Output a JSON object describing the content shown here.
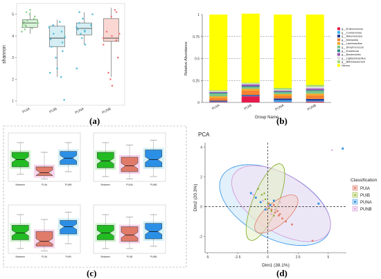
{
  "panels": {
    "a": {
      "label": "(a)",
      "chart_data": {
        "type": "boxplot",
        "ylabel": "shannon",
        "ylim": [
          0.8,
          5.5
        ],
        "yticks": [
          "1",
          "2",
          "3",
          "4",
          "5"
        ],
        "categories": [
          "PUIA",
          "PUIB",
          "PUNA",
          "PUNB"
        ],
        "colors": [
          "#8fd18f",
          "#5bc0d8",
          "#5bc0d8",
          "#f07c7c"
        ],
        "fills": [
          "#d8f5d8",
          "#d4eef4",
          "#d4eef4",
          "#fbd7d3"
        ],
        "boxes": [
          {
            "min": 4.1,
            "q1": 4.4,
            "median": 4.6,
            "q3": 4.75,
            "max": 5.1
          },
          {
            "min": 2.1,
            "q1": 3.5,
            "median": 3.9,
            "q3": 4.45,
            "max": 4.75
          },
          {
            "min": 3.6,
            "q1": 4.05,
            "median": 4.35,
            "q3": 4.6,
            "max": 5.1
          },
          {
            "min": 2.1,
            "q1": 3.75,
            "median": 3.9,
            "q3": 4.8,
            "max": 5.3
          }
        ],
        "points": [
          [
            4.2,
            4.3,
            4.4,
            4.45,
            4.5,
            4.55,
            4.6,
            4.65,
            4.7,
            4.75,
            4.8,
            4.9,
            5.0,
            5.1,
            5.2,
            4.35,
            4.6
          ],
          [
            1.05,
            2.1,
            2.3,
            3.0,
            3.3,
            3.5,
            3.7,
            3.85,
            3.95,
            4.1,
            4.2,
            4.4,
            4.5,
            4.65,
            2.5
          ],
          [
            2.5,
            3.6,
            3.9,
            4.1,
            4.2,
            4.3,
            4.4,
            4.5,
            4.6,
            4.8,
            5.0,
            5.1,
            4.25
          ],
          [
            1.7,
            2.0,
            2.3,
            3.0,
            3.6,
            3.8,
            3.9,
            4.0,
            4.2,
            4.9,
            5.1,
            5.2,
            4.1
          ]
        ]
      }
    },
    "b": {
      "label": "(b)",
      "chart_data": {
        "type": "bar",
        "stacked": true,
        "xlabel": "Group Name",
        "ylabel": "Relative Abundance",
        "ylim": [
          0,
          1
        ],
        "yticks": [
          "0",
          "0.25",
          "0.5",
          "0.75",
          "1"
        ],
        "categories": [
          "PUIA",
          "PUIB",
          "PUNA",
          "PUNB"
        ],
        "series": [
          {
            "name": "g__Enterococcus",
            "color": "#e6194b",
            "values": [
              0.005,
              0.07,
              0.005,
              0.01
            ]
          },
          {
            "name": "g__Comamonas",
            "color": "#3cb0f0",
            "values": [
              0.005,
              0.005,
              0.02,
              0.01
            ]
          },
          {
            "name": "g__Akkermansia",
            "color": "#1f3a93",
            "values": [
              0.01,
              0.01,
              0.02,
              0.02
            ]
          },
          {
            "name": "g__Klebsiella",
            "color": "#f58231",
            "values": [
              0.03,
              0.05,
              0.03,
              0.04
            ]
          },
          {
            "name": "g__Lactobacillus",
            "color": "#f5a623",
            "values": [
              0.02,
              0.02,
              0.02,
              0.02
            ]
          },
          {
            "name": "g__Streptococcus",
            "color": "#7cc68a",
            "values": [
              0.03,
              0.02,
              0.02,
              0.03
            ]
          },
          {
            "name": "g__Roseburia",
            "color": "#2e8b8b",
            "values": [
              0.01,
              0.01,
              0.01,
              0.01
            ]
          },
          {
            "name": "g__Bacteroides",
            "color": "#9b59b6",
            "values": [
              0.01,
              0.02,
              0.01,
              0.02
            ]
          },
          {
            "name": "g__Ligilactobacillus",
            "color": "#dddddd",
            "values": [
              0.01,
              0.01,
              0.01,
              0.02
            ]
          },
          {
            "name": "g__Bifidobacterium",
            "color": "#a3d977",
            "values": [
              0.01,
              0.01,
              0.02,
              0.02
            ]
          },
          {
            "name": "Others",
            "color": "#ffff00",
            "values": [
              0.86,
              0.785,
              0.835,
              0.8
            ]
          }
        ],
        "reference_lines": [
          0.25,
          0.5,
          0.75
        ]
      }
    },
    "c": {
      "label": "(c)",
      "chart_data": {
        "type": "boxplot",
        "notched": true,
        "subplots": [
          {
            "categories": [
              "Between",
              "PUIA",
              "PUNB"
            ],
            "boxes": [
              {
                "min": 0.15,
                "q1": 0.3,
                "median": 0.45,
                "q3": 0.6,
                "max": 0.8
              },
              {
                "min": 0.05,
                "q1": 0.12,
                "median": 0.18,
                "q3": 0.3,
                "max": 0.6
              },
              {
                "min": 0.2,
                "q1": 0.35,
                "median": 0.48,
                "q3": 0.62,
                "max": 0.8
              }
            ]
          },
          {
            "categories": [
              "Between",
              "PUNA",
              "PUNB"
            ],
            "boxes": [
              {
                "min": 0.1,
                "q1": 0.28,
                "median": 0.42,
                "q3": 0.6,
                "max": 0.8
              },
              {
                "min": 0.05,
                "q1": 0.2,
                "median": 0.32,
                "q3": 0.5,
                "max": 0.75
              },
              {
                "min": 0.1,
                "q1": 0.3,
                "median": 0.45,
                "q3": 0.65,
                "max": 0.85
              }
            ]
          },
          {
            "categories": [
              "Between",
              "PUIA",
              "PUIB"
            ],
            "boxes": [
              {
                "min": 0.1,
                "q1": 0.28,
                "median": 0.42,
                "q3": 0.58,
                "max": 0.8
              },
              {
                "min": 0.05,
                "q1": 0.15,
                "median": 0.25,
                "q3": 0.45,
                "max": 0.7
              },
              {
                "min": 0.2,
                "q1": 0.4,
                "median": 0.55,
                "q3": 0.68,
                "max": 0.85
              }
            ]
          },
          {
            "categories": [
              "Between",
              "PUIB",
              "PUNB"
            ],
            "boxes": [
              {
                "min": 0.1,
                "q1": 0.28,
                "median": 0.42,
                "q3": 0.58,
                "max": 0.8
              },
              {
                "min": 0.1,
                "q1": 0.25,
                "median": 0.38,
                "q3": 0.55,
                "max": 0.75
              },
              {
                "min": 0.15,
                "q1": 0.3,
                "median": 0.45,
                "q3": 0.62,
                "max": 0.8
              }
            ]
          }
        ],
        "colors": [
          "#22bb22",
          "#e07b6a",
          "#2b8fe6"
        ],
        "halo_colors": [
          "#c8f2c8",
          "#f4c9e6",
          "#c8eef8"
        ]
      }
    },
    "d": {
      "label": "(d)",
      "chart_data": {
        "type": "scatter",
        "title": "PCA",
        "xlabel": "Dim1 (38.1%)",
        "ylabel": "Dim2 (20.3%)",
        "xlim": [
          -5.2,
          6.5
        ],
        "ylim": [
          -3.1,
          4.3
        ],
        "xticks": [
          -5.0,
          -2.5,
          0.0,
          2.5,
          5.0
        ],
        "yticks": [
          -2,
          0,
          2,
          4
        ],
        "legend_title": "Classification",
        "series": [
          {
            "name": "PUIA",
            "color": "#e07b6a",
            "fill": "#f4cfc8",
            "marker": "circle",
            "ellipse": {
              "cx": 0.7,
              "cy": -0.5,
              "rx": 2.2,
              "ry": 0.75,
              "angle": -40
            },
            "points": [
              [
                0.3,
                -0.2
              ],
              [
                0.6,
                -0.4
              ],
              [
                0.9,
                -0.6
              ],
              [
                1.2,
                -0.8
              ],
              [
                0.5,
                0.1
              ],
              [
                1.5,
                -1.0
              ],
              [
                0.8,
                -0.3
              ],
              [
                2.0,
                -1.2
              ],
              [
                0.1,
                0.2
              ],
              [
                1.0,
                -0.5
              ],
              [
                3.7,
                -2.3
              ]
            ]
          },
          {
            "name": "PUIB",
            "color": "#7fa825",
            "fill": "#e6f0c4",
            "marker": "triangle",
            "ellipse": {
              "cx": -0.2,
              "cy": 0.3,
              "rx": 3.4,
              "ry": 0.85,
              "angle": -68
            },
            "points": [
              [
                -0.5,
                0.8
              ],
              [
                -0.2,
                0.5
              ],
              [
                0.0,
                0.2
              ],
              [
                0.3,
                -0.3
              ],
              [
                -0.8,
                1.2
              ],
              [
                0.1,
                -0.1
              ],
              [
                -0.3,
                0.9
              ],
              [
                0.5,
                -0.6
              ]
            ]
          },
          {
            "name": "PUNA",
            "color": "#2b8fe6",
            "fill": "#c8e4f8",
            "marker": "square",
            "ellipse": {
              "cx": 0.6,
              "cy": 0.1,
              "rx": 5.0,
              "ry": 2.2,
              "angle": 28
            },
            "points": [
              [
                -1.0,
                0.6
              ],
              [
                -0.6,
                0.3
              ],
              [
                -0.2,
                -0.2
              ],
              [
                0.2,
                0.1
              ],
              [
                -1.4,
                0.9
              ],
              [
                4.2,
                0.2
              ],
              [
                6.2,
                3.9
              ],
              [
                0.5,
                0.4
              ]
            ]
          },
          {
            "name": "PUNB",
            "color": "#d48fd4",
            "fill": "#f4e0f4",
            "marker": "cross",
            "ellipse": {
              "cx": 1.1,
              "cy": 0.2,
              "rx": 4.6,
              "ry": 1.9,
              "angle": 32
            },
            "points": [
              [
                -0.4,
                0.4
              ],
              [
                0.0,
                0.0
              ],
              [
                0.6,
                -0.2
              ],
              [
                -1.2,
                0.8
              ],
              [
                1.0,
                0.3
              ],
              [
                5.3,
                3.8
              ],
              [
                0.3,
                -0.5
              ]
            ]
          }
        ]
      }
    }
  }
}
